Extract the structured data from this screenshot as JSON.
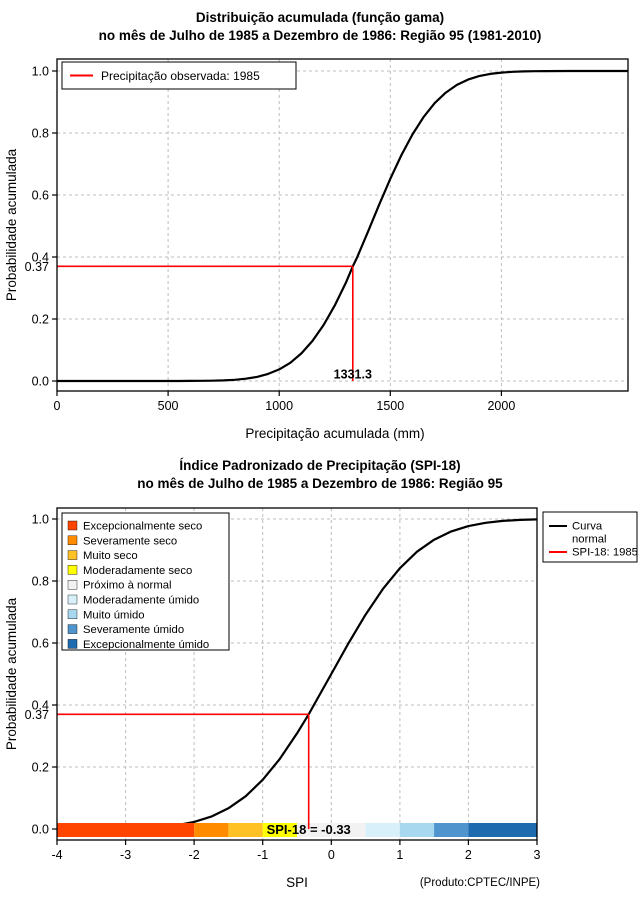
{
  "chart_data": [
    {
      "type": "line",
      "title": "Distribuição acumulada (função gama)",
      "subtitle": "no mês de Julho de 1985 a Dezembro de 1986: Região 95 (1981-2010)",
      "xlabel": "Precipitação acumulada (mm)",
      "ylabel": "Probabilidade acumulada",
      "xlim": [
        0,
        2570
      ],
      "ylim": [
        0,
        1
      ],
      "grid": true,
      "x_ticks": [
        0,
        500,
        1000,
        1500,
        2000
      ],
      "x_tick_labels": [
        "0",
        "500",
        "1000",
        "1500",
        "2000"
      ],
      "y_ticks": [
        0,
        0.2,
        0.4,
        0.6,
        0.8,
        1
      ],
      "y_tick_labels": [
        "0.0",
        "0.2",
        "0.4",
        "0.6",
        "0.8",
        "1.0"
      ],
      "series": [
        {
          "name": "Distribuição gama acumulada",
          "color": "#000000",
          "x": [
            0,
            200,
            400,
            500,
            550,
            600,
            650,
            700,
            750,
            800,
            850,
            900,
            950,
            1000,
            1050,
            1100,
            1150,
            1200,
            1250,
            1300,
            1331.3,
            1350,
            1400,
            1450,
            1500,
            1550,
            1600,
            1650,
            1700,
            1750,
            1800,
            1850,
            1900,
            1950,
            2000,
            2050,
            2100,
            2150,
            2200,
            2300,
            2400,
            2570
          ],
          "y": [
            0,
            0,
            0.0001,
            0.0001,
            0.0001,
            0.0002,
            0.0005,
            0.001,
            0.002,
            0.004,
            0.0075,
            0.0132,
            0.0228,
            0.0373,
            0.0588,
            0.0889,
            0.1292,
            0.1806,
            0.2433,
            0.3163,
            0.37,
            0.3971,
            0.4827,
            0.569,
            0.6522,
            0.7287,
            0.7956,
            0.8516,
            0.8963,
            0.9303,
            0.9551,
            0.9721,
            0.9834,
            0.9906,
            0.9948,
            0.9973,
            0.9987,
            0.9994,
            0.9997,
            0.9999,
            1,
            1
          ]
        }
      ],
      "marker": {
        "x": 1331.3,
        "y": 0.37,
        "x_label": "1331.3",
        "y_label": "0.37",
        "color": "#FF0000"
      },
      "legend": {
        "position": "topleft",
        "entries": [
          {
            "label": "Precipitação observada: 1985",
            "color": "#FF0000",
            "type": "line"
          }
        ]
      }
    },
    {
      "type": "line",
      "title": "Índice Padronizado de Precipitação (SPI-18)",
      "subtitle": "no mês de Julho de 1985 a Dezembro de 1986: Região 95",
      "xlabel": "SPI",
      "ylabel": "Probabilidade acumulada",
      "xlim": [
        -4,
        3
      ],
      "ylim": [
        0,
        1
      ],
      "grid": true,
      "x_ticks": [
        -4,
        -3,
        -2,
        -1,
        0,
        1,
        2,
        3
      ],
      "x_tick_labels": [
        "-4",
        "-3",
        "-2",
        "-1",
        "0",
        "1",
        "2",
        "3"
      ],
      "y_ticks": [
        0,
        0.2,
        0.4,
        0.6,
        0.8,
        1
      ],
      "y_tick_labels": [
        "0.0",
        "0.2",
        "0.4",
        "0.6",
        "0.8",
        "1.0"
      ],
      "series": [
        {
          "name": "Curva normal",
          "color": "#000000",
          "x": [
            -4,
            -3.75,
            -3.5,
            -3.25,
            -3,
            -2.75,
            -2.5,
            -2.25,
            -2,
            -1.75,
            -1.5,
            -1.25,
            -1,
            -0.75,
            -0.5,
            -0.33,
            -0.25,
            0,
            0.25,
            0.5,
            0.75,
            1,
            1.25,
            1.5,
            1.75,
            2,
            2.25,
            2.5,
            2.75,
            3
          ],
          "y": [
            0,
            0.0001,
            0.0002,
            0.0006,
            0.0013,
            0.003,
            0.0062,
            0.0122,
            0.0228,
            0.0401,
            0.0668,
            0.1056,
            0.1587,
            0.2266,
            0.3085,
            0.37,
            0.4013,
            0.5,
            0.5987,
            0.6915,
            0.7734,
            0.8413,
            0.8944,
            0.9332,
            0.9599,
            0.9772,
            0.9878,
            0.9938,
            0.997,
            0.9987
          ]
        }
      ],
      "marker": {
        "x": -0.33,
        "y": 0.37,
        "y_label": "0.37",
        "color": "#FF0000",
        "annotation": "SPI-18 = -0.33",
        "annotation_color": "#FFCC00"
      },
      "category_legend": {
        "position": "topleft",
        "entries": [
          {
            "label": "Excepcionalmente seco",
            "color": "#FF4500"
          },
          {
            "label": "Severamente seco",
            "color": "#FF8C00"
          },
          {
            "label": "Muito seco",
            "color": "#FFC125"
          },
          {
            "label": "Moderadamente seco",
            "color": "#FFFF00"
          },
          {
            "label": "Próximo à normal",
            "color": "#F2F2F2"
          },
          {
            "label": "Moderadamente úmido",
            "color": "#D8F0FA"
          },
          {
            "label": "Muito úmido",
            "color": "#A8D8EF"
          },
          {
            "label": "Severamente úmido",
            "color": "#4F94CD"
          },
          {
            "label": "Excepcionalmente úmido",
            "color": "#1F6BB0"
          }
        ]
      },
      "line_legend": {
        "position": "topright",
        "entries": [
          {
            "label_lines": [
              "Curva",
              "normal"
            ],
            "color": "#000000"
          },
          {
            "label_lines": [
              "SPI-18: 1985"
            ],
            "color": "#FF0000"
          }
        ]
      },
      "category_bar": {
        "segments": [
          {
            "from": -4,
            "to": -2,
            "color": "#FF4500"
          },
          {
            "from": -2,
            "to": -1.5,
            "color": "#FF8C00"
          },
          {
            "from": -1.5,
            "to": -1,
            "color": "#FFC125"
          },
          {
            "from": -1,
            "to": -0.5,
            "color": "#FFFF00"
          },
          {
            "from": -0.5,
            "to": 0.5,
            "color": "#F2F2F2"
          },
          {
            "from": 0.5,
            "to": 1,
            "color": "#D8F0FA"
          },
          {
            "from": 1,
            "to": 1.5,
            "color": "#A8D8EF"
          },
          {
            "from": 1.5,
            "to": 2,
            "color": "#4F94CD"
          },
          {
            "from": 2,
            "to": 3,
            "color": "#1F6BB0"
          }
        ]
      },
      "footnote": "(Produto:CPTEC/INPE)"
    }
  ]
}
